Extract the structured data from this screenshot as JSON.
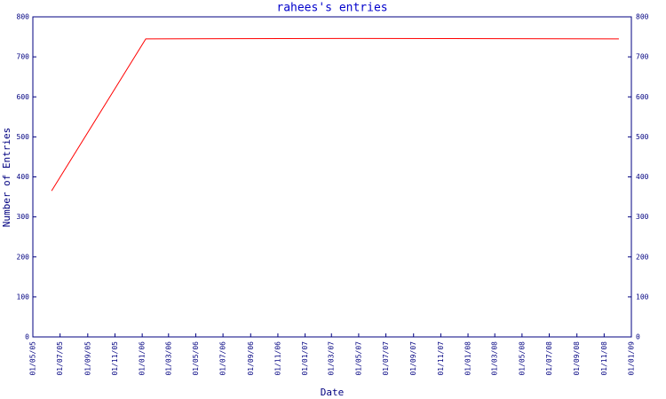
{
  "chart_data": {
    "type": "line",
    "title": "rahees's entries",
    "xlabel": "Date",
    "ylabel": "Number of Entries",
    "x": [
      "2005-06-12",
      "2006-01-09",
      "2007-05-13",
      "2008-12-04"
    ],
    "values": [
      365,
      745,
      746,
      745
    ],
    "color": "#ff0000",
    "axis_color": "#000080",
    "xlim": [
      "2005-05-01",
      "2009-01-01"
    ],
    "xticks": [
      {
        "value": "2005-05-01",
        "label": "01/05/05"
      },
      {
        "value": "2005-07-01",
        "label": "01/07/05"
      },
      {
        "value": "2005-09-01",
        "label": "01/09/05"
      },
      {
        "value": "2005-11-01",
        "label": "01/11/05"
      },
      {
        "value": "2006-01-01",
        "label": "01/01/06"
      },
      {
        "value": "2006-03-01",
        "label": "01/03/06"
      },
      {
        "value": "2006-05-01",
        "label": "01/05/06"
      },
      {
        "value": "2006-07-01",
        "label": "01/07/06"
      },
      {
        "value": "2006-09-01",
        "label": "01/09/06"
      },
      {
        "value": "2006-11-01",
        "label": "01/11/06"
      },
      {
        "value": "2007-01-01",
        "label": "01/01/07"
      },
      {
        "value": "2007-03-01",
        "label": "01/03/07"
      },
      {
        "value": "2007-05-01",
        "label": "01/05/07"
      },
      {
        "value": "2007-07-01",
        "label": "01/07/07"
      },
      {
        "value": "2007-09-01",
        "label": "01/09/07"
      },
      {
        "value": "2007-11-01",
        "label": "01/11/07"
      },
      {
        "value": "2008-01-01",
        "label": "01/01/08"
      },
      {
        "value": "2008-03-01",
        "label": "01/03/08"
      },
      {
        "value": "2008-05-01",
        "label": "01/05/08"
      },
      {
        "value": "2008-07-01",
        "label": "01/07/08"
      },
      {
        "value": "2008-09-01",
        "label": "01/09/08"
      },
      {
        "value": "2008-11-01",
        "label": "01/11/08"
      },
      {
        "value": "2009-01-01",
        "label": "01/01/09"
      }
    ],
    "ylim": [
      0,
      800
    ],
    "yticks": [
      0,
      100,
      200,
      300,
      400,
      500,
      600,
      700,
      800
    ],
    "y2lim": [
      0,
      800
    ],
    "y2ticks": [
      0,
      100,
      200,
      300,
      400,
      500,
      600,
      700,
      800
    ],
    "grid": false
  }
}
